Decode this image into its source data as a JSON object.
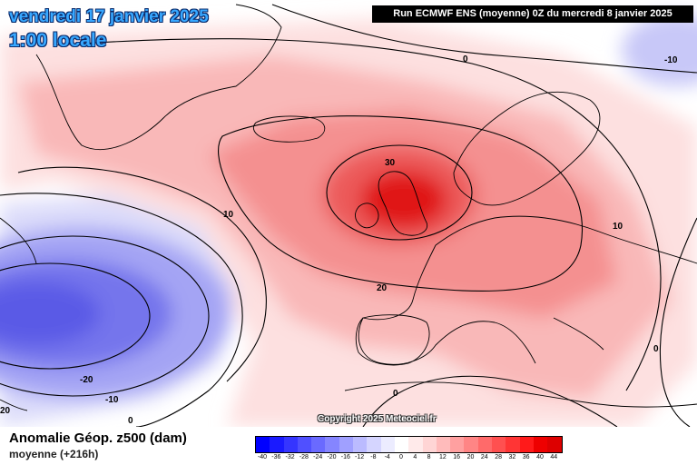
{
  "header": {
    "date": "vendredi 17 janvier 2025",
    "time": "1:00 locale",
    "run": "Run ECMWF ENS (moyenne) 0Z du mercredi 8 janvier 2025"
  },
  "map": {
    "copyright": "Copyright 2025 Meteociel.fr",
    "contour_labels": [
      "30",
      "20",
      "10",
      "0",
      "-10",
      "-20",
      "-10",
      "0",
      "0",
      "0",
      "20",
      "10"
    ],
    "colors": {
      "strong_positive": "#e01818",
      "positive": "#f07878",
      "weak_positive": "#fcd0d0",
      "negative": "#6a6aee",
      "weak_negative": "#c8c8f8",
      "land_outline": "#000000"
    }
  },
  "legend": {
    "title": "Anomalie Géop. z500 (dam)",
    "subtitle": "moyenne   (+216h)",
    "ticks": [
      "-40",
      "-36",
      "-32",
      "-28",
      "-24",
      "-20",
      "-16",
      "-12",
      "-8",
      "-4",
      "0",
      "4",
      "8",
      "12",
      "16",
      "20",
      "24",
      "28",
      "32",
      "36",
      "40",
      "44"
    ],
    "colors": [
      "#0000ff",
      "#1a1aff",
      "#3535ff",
      "#5050ff",
      "#6a6aff",
      "#8585ff",
      "#a0a0ff",
      "#bbbbff",
      "#d5d5ff",
      "#ececff",
      "#ffffff",
      "#ffeaea",
      "#ffd5d5",
      "#ffbbbb",
      "#ffa0a0",
      "#ff8585",
      "#ff6a6a",
      "#ff5050",
      "#ff3535",
      "#ff1a1a",
      "#ee0000",
      "#dd0000"
    ]
  }
}
